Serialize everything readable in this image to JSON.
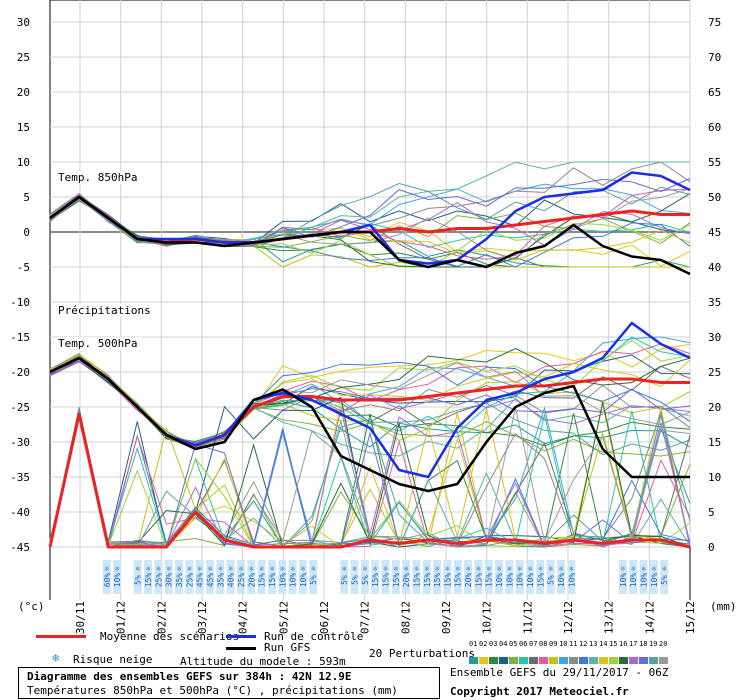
{
  "chart_data": {
    "type": "line",
    "title": "Diagramme des ensembles GEFS sur 384h : 42N 12.9E",
    "subtitle": "Températures 850hPa et 500hPa (°C) , précipitations (mm)",
    "left_axis": {
      "label": "(°c)",
      "ticks": [
        30,
        25,
        20,
        15,
        10,
        5,
        0,
        -5,
        -10,
        -15,
        -20,
        -25,
        -30,
        -35,
        -40,
        -45
      ],
      "ylim": [
        -45,
        30
      ]
    },
    "right_axis": {
      "label": "(mm)",
      "ticks": [
        75,
        70,
        65,
        60,
        55,
        50,
        45,
        40,
        35,
        30,
        25,
        20,
        15,
        10,
        5,
        0
      ],
      "ylim": [
        0,
        75
      ]
    },
    "x_labels": [
      "30/11",
      "01/12",
      "02/12",
      "03/12",
      "04/12",
      "05/12",
      "06/12",
      "07/12",
      "08/12",
      "09/12",
      "10/12",
      "11/12",
      "12/12",
      "13/12",
      "14/12",
      "15/12"
    ],
    "panel_labels": {
      "t850": "Temp. 850hPa",
      "precip": "Précipitations",
      "t500": "Temp. 500hPa"
    },
    "snow_risk": [
      {
        "slot": 5,
        "label": "60%"
      },
      {
        "slot": 6,
        "label": "10%"
      },
      {
        "slot": 8,
        "label": "5%"
      },
      {
        "slot": 9,
        "label": "15%"
      },
      {
        "slot": 10,
        "label": "25%"
      },
      {
        "slot": 11,
        "label": "30%"
      },
      {
        "slot": 12,
        "label": "35%"
      },
      {
        "slot": 13,
        "label": "25%"
      },
      {
        "slot": 14,
        "label": "45%"
      },
      {
        "slot": 15,
        "label": "45%"
      },
      {
        "slot": 16,
        "label": "35%"
      },
      {
        "slot": 17,
        "label": "40%"
      },
      {
        "slot": 18,
        "label": "25%"
      },
      {
        "slot": 19,
        "label": "20%"
      },
      {
        "slot": 20,
        "label": "15%"
      },
      {
        "slot": 21,
        "label": "15%"
      },
      {
        "slot": 22,
        "label": "10%"
      },
      {
        "slot": 23,
        "label": "10%"
      },
      {
        "slot": 24,
        "label": "10%"
      },
      {
        "slot": 25,
        "label": "5%"
      },
      {
        "slot": 28,
        "label": "5%"
      },
      {
        "slot": 29,
        "label": "5%"
      },
      {
        "slot": 30,
        "label": "5%"
      },
      {
        "slot": 31,
        "label": "15%"
      },
      {
        "slot": 32,
        "label": "15%"
      },
      {
        "slot": 33,
        "label": "15%"
      },
      {
        "slot": 34,
        "label": "20%"
      },
      {
        "slot": 35,
        "label": "15%"
      },
      {
        "slot": 36,
        "label": "15%"
      },
      {
        "slot": 37,
        "label": "15%"
      },
      {
        "slot": 38,
        "label": "15%"
      },
      {
        "slot": 39,
        "label": "15%"
      },
      {
        "slot": 40,
        "label": "20%"
      },
      {
        "slot": 41,
        "label": "15%"
      },
      {
        "slot": 42,
        "label": "15%"
      },
      {
        "slot": 43,
        "label": "10%"
      },
      {
        "slot": 44,
        "label": "10%"
      },
      {
        "slot": 45,
        "label": "10%"
      },
      {
        "slot": 46,
        "label": "10%"
      },
      {
        "slot": 47,
        "label": "15%"
      },
      {
        "slot": 48,
        "label": "5%"
      },
      {
        "slot": 49,
        "label": "10%"
      },
      {
        "slot": 50,
        "label": "10%"
      },
      {
        "slot": 55,
        "label": "10%"
      },
      {
        "slot": 56,
        "label": "10%"
      },
      {
        "slot": 57,
        "label": "10%"
      },
      {
        "slot": 58,
        "label": "10%"
      },
      {
        "slot": 59,
        "label": "5%"
      }
    ],
    "series": [
      {
        "name": "Moyenne des scénarios",
        "group": "t850",
        "color": "#ee2222",
        "values": [
          2,
          5,
          2,
          -1,
          -1.5,
          -1,
          -1.5,
          -1.5,
          -1,
          -0.5,
          0,
          0,
          0.5,
          0,
          0.5,
          0.5,
          1,
          1.5,
          2,
          2.5,
          3,
          2.5,
          2.5
        ]
      },
      {
        "name": "Run de contrôle",
        "group": "t850",
        "color": "#1a2ee6",
        "values": [
          2,
          5,
          2,
          -1,
          -1,
          -1,
          -1.5,
          -1.5,
          -1,
          -0.5,
          0,
          1,
          -4,
          -4.5,
          -4,
          -1,
          3,
          5,
          5.5,
          6,
          8.5,
          8,
          6
        ]
      },
      {
        "name": "Run GFS",
        "group": "t850",
        "color": "#000000",
        "values": [
          2,
          5,
          2,
          -1,
          -1.5,
          -1.5,
          -2,
          -1.5,
          -1,
          -0.5,
          0,
          0,
          -4,
          -5,
          -4,
          -5,
          -3,
          -2,
          1,
          -2,
          -3.5,
          -4,
          -6
        ]
      },
      {
        "name": "Moyenne des scénarios",
        "group": "t500",
        "color": "#ee2222",
        "values": [
          -20,
          -18,
          -21,
          -25,
          -29,
          -30.5,
          -29,
          -25,
          -23.5,
          -23.5,
          -24,
          -24,
          -24,
          -23.5,
          -23,
          -22.5,
          -22,
          -22,
          -21.5,
          -21,
          -21,
          -21.5,
          -21.5
        ]
      },
      {
        "name": "Run de contrôle",
        "group": "t500",
        "color": "#1a2ee6",
        "values": [
          -20,
          -18,
          -21,
          -25,
          -29,
          -30.5,
          -29,
          -24,
          -23,
          -24,
          -26,
          -28,
          -34,
          -35,
          -28,
          -24,
          -23,
          -21,
          -20,
          -18,
          -13,
          -16,
          -18
        ]
      },
      {
        "name": "Run GFS",
        "group": "t500",
        "color": "#000000",
        "values": [
          -20,
          -18,
          -21,
          -25,
          -29,
          -31,
          -30,
          -24,
          -22.5,
          -25,
          -32,
          -34,
          -36,
          -37,
          -36,
          -30,
          -25,
          -23,
          -22,
          -31,
          -35,
          -35,
          -35
        ]
      },
      {
        "name": "Moyenne des scénarios",
        "group": "precip",
        "color": "#ee2222",
        "values": [
          0,
          19,
          0,
          0,
          0,
          5,
          1,
          0,
          0,
          0,
          0,
          1,
          0.5,
          1,
          0.5,
          1,
          1,
          0.5,
          1,
          0.5,
          1,
          1,
          0
        ]
      }
    ],
    "ensemble_spread": {
      "t850": {
        "max": 10,
        "min": -5
      },
      "t500": {
        "max": -15,
        "min": -32
      }
    },
    "grid": true
  },
  "legend": {
    "mean": "Moyenne des scénarios",
    "control": "Run de contrôle",
    "gfs": "Run GFS",
    "perturbations": "20 Perturbations",
    "snow": "Risque neige",
    "altitude": "Altitude du modele : 593m",
    "pert_numbers": [
      "01",
      "02",
      "03",
      "04",
      "05",
      "06",
      "07",
      "08",
      "09",
      "10",
      "11",
      "12",
      "13",
      "14",
      "15",
      "16",
      "17",
      "18",
      "19",
      "20"
    ],
    "pert_colors": [
      "#1b9e9e",
      "#e6c619",
      "#2f8a3a",
      "#1e5f86",
      "#7fb23b",
      "#26c6a6",
      "#6b6b6b",
      "#e05b9f",
      "#c3c316",
      "#3fa6e6",
      "#8a8a8a",
      "#3b7bd6",
      "#57b6a0",
      "#d8c31e",
      "#9bd43a",
      "#2a6d3b",
      "#a86ad8",
      "#6a6ad8",
      "#5aa0a0",
      "#9a9a9a"
    ]
  },
  "footer": {
    "title": "Diagramme des ensembles GEFS sur 384h : 42N 12.9E",
    "subtitle": "Températures 850hPa et 500hPa (°C) , précipitations (mm)",
    "ensemble": "Ensemble GEFS du 29/11/2017 - 06Z",
    "copyright": "Copyright 2017 Meteociel.fr"
  }
}
